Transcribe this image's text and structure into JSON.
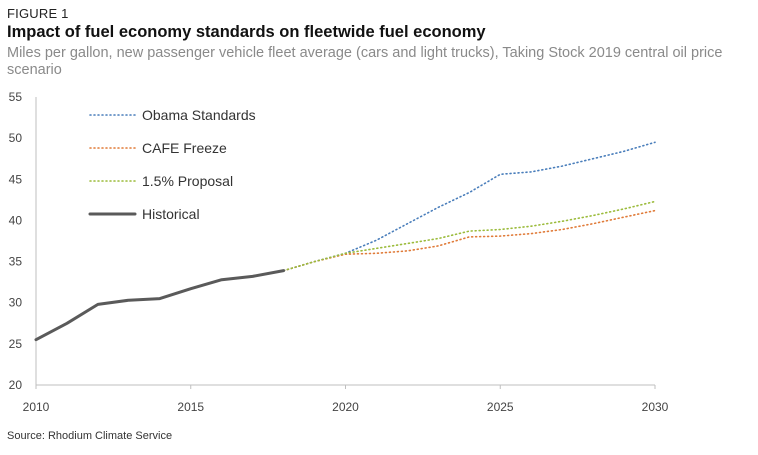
{
  "figure_label": "FIGURE 1",
  "title": "Impact of fuel economy standards on fleetwide fuel economy",
  "subtitle": "Miles per gallon, new passenger vehicle fleet average (cars and light trucks), Taking Stock 2019 central oil price scenario",
  "source": "Source: Rhodium Climate Service",
  "chart_data": {
    "type": "line",
    "title": "Impact of fuel economy standards on fleetwide fuel economy",
    "xlabel": "",
    "ylabel": "",
    "xlim": [
      2010,
      2030
    ],
    "ylim": [
      20,
      55
    ],
    "xticks": [
      2010,
      2015,
      2020,
      2025,
      2030
    ],
    "yticks": [
      20,
      25,
      30,
      35,
      40,
      45,
      50,
      55
    ],
    "grid": false,
    "legend": "top-left",
    "series": [
      {
        "name": "Obama Standards",
        "color": "#4a7ebb",
        "style": "dotted",
        "x": [
          2018,
          2019,
          2020,
          2021,
          2022,
          2023,
          2024,
          2025,
          2026,
          2027,
          2028,
          2029,
          2030
        ],
        "y": [
          33.9,
          35.0,
          36.0,
          37.6,
          39.6,
          41.6,
          43.4,
          45.6,
          45.9,
          46.6,
          47.5,
          48.4,
          49.5
        ]
      },
      {
        "name": "CAFE Freeze",
        "color": "#e07b39",
        "style": "dotted",
        "x": [
          2018,
          2019,
          2020,
          2021,
          2022,
          2023,
          2024,
          2025,
          2026,
          2027,
          2028,
          2029,
          2030
        ],
        "y": [
          33.9,
          35.0,
          35.9,
          36.0,
          36.3,
          36.9,
          38.0,
          38.1,
          38.4,
          38.9,
          39.6,
          40.4,
          41.2
        ]
      },
      {
        "name": "1.5% Proposal",
        "color": "#9bbb3b",
        "style": "dotted",
        "x": [
          2018,
          2019,
          2020,
          2021,
          2022,
          2023,
          2024,
          2025,
          2026,
          2027,
          2028,
          2029,
          2030
        ],
        "y": [
          33.9,
          35.0,
          36.0,
          36.6,
          37.2,
          37.8,
          38.7,
          38.9,
          39.3,
          39.9,
          40.6,
          41.4,
          42.3
        ]
      },
      {
        "name": "Historical",
        "color": "#5a5a5a",
        "style": "solid",
        "x": [
          2010,
          2011,
          2012,
          2013,
          2014,
          2015,
          2016,
          2017,
          2018
        ],
        "y": [
          25.5,
          27.5,
          29.8,
          30.3,
          30.5,
          31.7,
          32.8,
          33.2,
          33.9
        ]
      }
    ]
  }
}
